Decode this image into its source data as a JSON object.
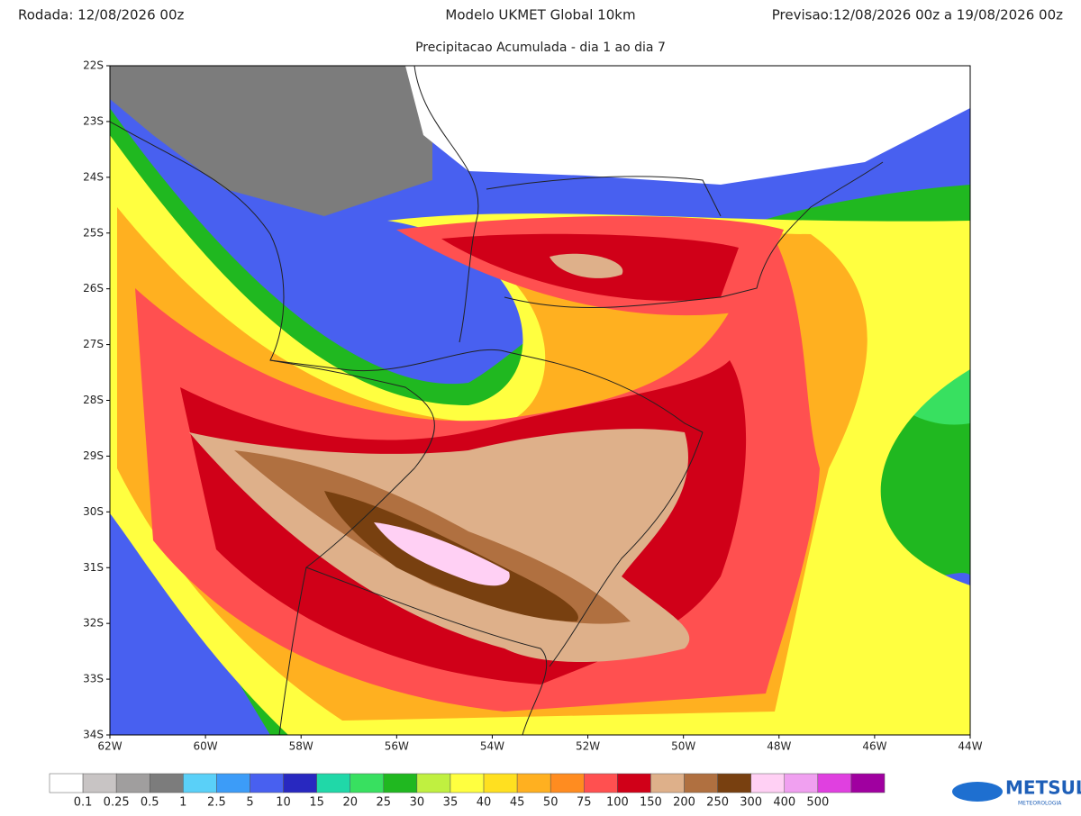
{
  "header": {
    "run": "Rodada: 12/08/2026 00z",
    "model": "Modelo UKMET Global 10km",
    "forecast": "Previsao:12/08/2026 00z a 19/08/2026 00z",
    "subtitle": "Precipitacao Acumulada - dia 1 ao dia 7"
  },
  "map": {
    "lat_labels": [
      "22S",
      "23S",
      "24S",
      "25S",
      "26S",
      "27S",
      "28S",
      "29S",
      "30S",
      "31S",
      "32S",
      "33S",
      "34S"
    ],
    "lon_labels": [
      "62W",
      "60W",
      "58W",
      "56W",
      "54W",
      "52W",
      "50W",
      "48W",
      "46W",
      "44W"
    ]
  },
  "colorbar": {
    "colors": [
      "#ffffff",
      "#c8c4c4",
      "#a09e9e",
      "#7c7c7c",
      "#5ad0f8",
      "#3c9cf8",
      "#4860f0",
      "#2828c0",
      "#20d8a8",
      "#38e060",
      "#20b820",
      "#c0f040",
      "#ffff40",
      "#ffe020",
      "#ffb020",
      "#ff8c20",
      "#ff5050",
      "#d00018",
      "#deb08a",
      "#b07040",
      "#784010",
      "#ffd0f4",
      "#f0a0f0",
      "#e040e0",
      "#a000a0"
    ],
    "labels": [
      "0.1",
      "0.25",
      "0.5",
      "1",
      "2.5",
      "5",
      "10",
      "15",
      "20",
      "25",
      "30",
      "35",
      "40",
      "45",
      "50",
      "75",
      "100",
      "150",
      "200",
      "250",
      "300",
      "400",
      "500"
    ]
  },
  "logo": {
    "name": "METSUL",
    "tagline": "METEOROLOGIA"
  }
}
